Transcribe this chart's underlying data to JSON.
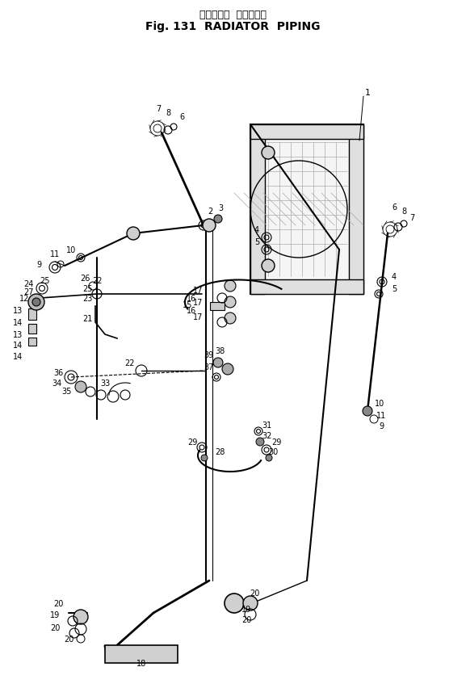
{
  "title_jp": "ラジエータ  バイピング",
  "title_en": "Fig. 131  RADIATOR  PIPING",
  "bg_color": "#ffffff",
  "line_color": "#000000",
  "fig_width": 5.77,
  "fig_height": 8.53,
  "dpi": 100
}
